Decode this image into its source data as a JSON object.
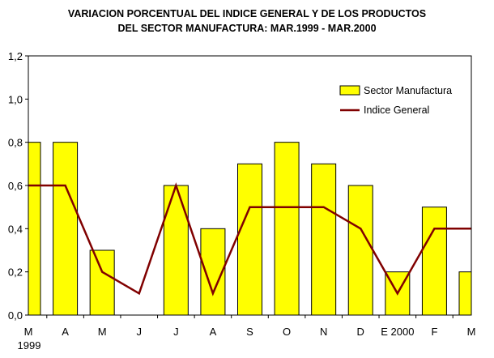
{
  "chart_data": {
    "type": "bar",
    "title_line1": "VARIACION PORCENTUAL DEL INDICE GENERAL Y DE LOS PRODUCTOS",
    "title_line2": "DEL SECTOR MANUFACTURA: MAR.1999 - MAR.2000",
    "categories": [
      "M",
      "A",
      "M",
      "J",
      "J",
      "A",
      "S",
      "O",
      "N",
      "D",
      "E 2000",
      "F",
      "M"
    ],
    "year_label": "1999",
    "y_ticks": [
      "0,0",
      "0,2",
      "0,4",
      "0,6",
      "0,8",
      "1,0",
      "1,2"
    ],
    "ylim": [
      0,
      1.2
    ],
    "grid": false,
    "legend_position": "top-right",
    "series": [
      {
        "name": "Sector Manufactura",
        "kind": "bar",
        "values": [
          0.8,
          0.8,
          0.3,
          0.0,
          0.6,
          0.4,
          0.7,
          0.8,
          0.7,
          0.6,
          0.2,
          0.5,
          0.2
        ]
      },
      {
        "name": "Indice General",
        "kind": "line",
        "values": [
          0.6,
          0.6,
          0.2,
          0.1,
          0.6,
          0.1,
          0.5,
          0.5,
          0.5,
          0.4,
          0.1,
          0.4,
          0.4
        ]
      }
    ],
    "colors": {
      "bar_fill": "#FFFF00",
      "bar_stroke": "#000000",
      "line": "#800000",
      "axis": "#000000"
    }
  }
}
